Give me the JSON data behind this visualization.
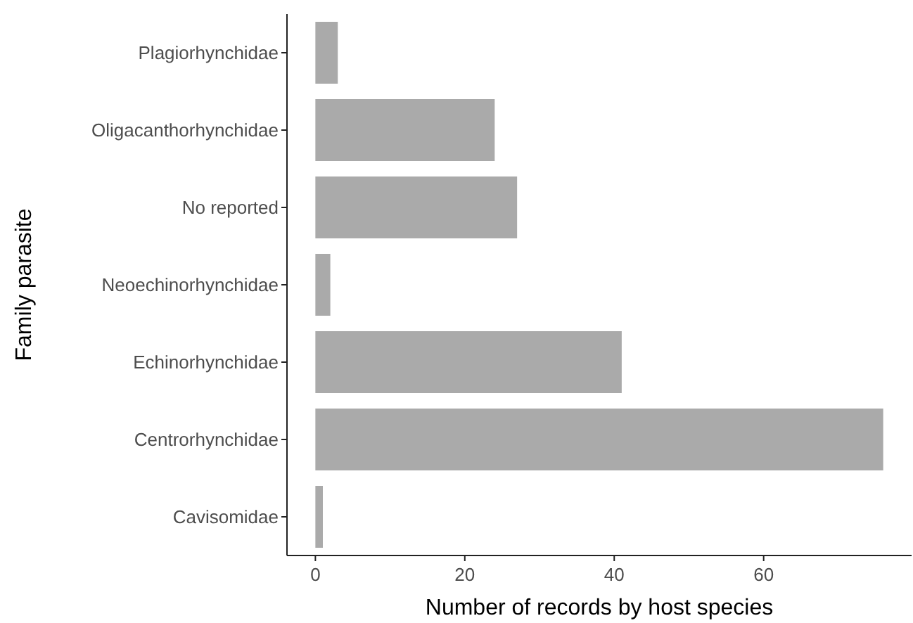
{
  "chart_data": {
    "type": "bar",
    "orientation": "horizontal",
    "xlabel": "Number of records by host species",
    "ylabel": "Family parasite",
    "categories": [
      "Plagiorhynchidae",
      "Oligacanthorhynchidae",
      "No reported",
      "Neoechinorhynchidae",
      "Echinorhynchidae",
      "Centrorhynchidae",
      "Cavisomidae"
    ],
    "values": [
      3,
      24,
      27,
      2,
      41,
      76,
      1
    ],
    "color": "#aaaaaa",
    "xlim": [
      -3.8,
      79.8
    ],
    "xticks": [
      0,
      20,
      40,
      60
    ],
    "grid": false
  }
}
